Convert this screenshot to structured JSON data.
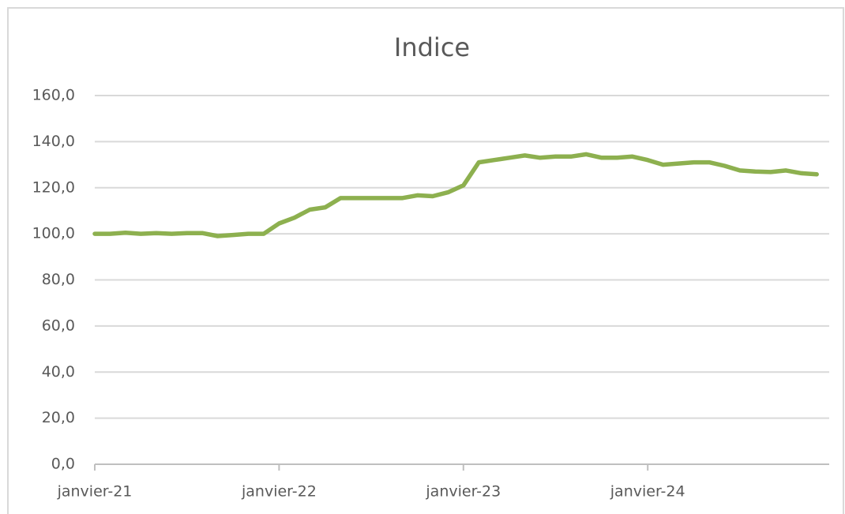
{
  "chart_data": {
    "type": "line",
    "title": "Indice",
    "categories": [
      "janvier-21",
      null,
      null,
      null,
      null,
      null,
      null,
      null,
      null,
      null,
      null,
      null,
      "janvier-22",
      null,
      null,
      null,
      null,
      null,
      null,
      null,
      null,
      null,
      null,
      null,
      "janvier-23",
      null,
      null,
      null,
      null,
      null,
      null,
      null,
      null,
      null,
      null,
      null,
      "janvier-24",
      null,
      null,
      null,
      null,
      null,
      null,
      null,
      null,
      null,
      null,
      null
    ],
    "values": [
      100,
      100,
      100.5,
      100,
      100.3,
      100,
      100.3,
      100.3,
      99,
      99.5,
      100,
      100,
      104.5,
      107,
      110.5,
      111.5,
      115.5,
      115.5,
      115.5,
      115.5,
      115.5,
      116.7,
      116.3,
      118,
      121,
      131,
      132,
      133,
      134,
      133,
      133.5,
      133.5,
      134.5,
      133,
      133,
      133.5,
      132,
      130,
      130.5,
      131,
      131,
      129.5,
      127.5,
      127,
      126.8,
      127.5,
      126.3,
      125.8
    ],
    "color": "#8db04f",
    "ylim": [
      0,
      160
    ],
    "yticks": [
      {
        "value": 0,
        "label": "0,0"
      },
      {
        "value": 20,
        "label": "20,0"
      },
      {
        "value": 40,
        "label": "40,0"
      },
      {
        "value": 60,
        "label": "60,0"
      },
      {
        "value": 80,
        "label": "80,0"
      },
      {
        "value": 100,
        "label": "100,0"
      },
      {
        "value": 120,
        "label": "120,0"
      },
      {
        "value": 140,
        "label": "140,0"
      },
      {
        "value": 160,
        "label": "160,0"
      }
    ],
    "grid": true
  }
}
